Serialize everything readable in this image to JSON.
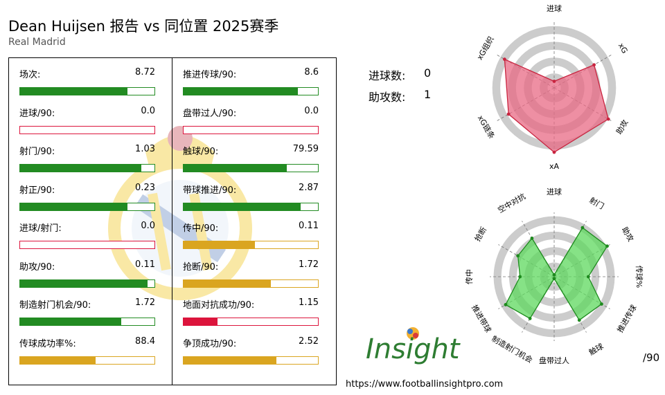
{
  "header": {
    "title": "Dean Huijsen 报告 vs 同位置 2025赛季",
    "subtitle": "Real Madrid"
  },
  "colors": {
    "green": "#228b22",
    "red": "#dc143c",
    "gold": "#daa520",
    "radar_red": "#e05070",
    "radar_green": "#4cc94c",
    "ring": "#cccccc"
  },
  "counts": {
    "goals_label": "进球数:",
    "goals_value": "0",
    "assists_label": "助攻数:",
    "assists_value": "1"
  },
  "stats_left": [
    {
      "label": "场次:",
      "value": "8.72",
      "fill": 0.8,
      "color": "green"
    },
    {
      "label": "进球/90:",
      "value": "0.0",
      "fill": 0.0,
      "color": "red"
    },
    {
      "label": "射门/90:",
      "value": "1.03",
      "fill": 0.9,
      "color": "green"
    },
    {
      "label": "射正/90:",
      "value": "0.23",
      "fill": 0.8,
      "color": "green"
    },
    {
      "label": "进球/射门:",
      "value": "0.0",
      "fill": 0.0,
      "color": "red"
    },
    {
      "label": "助攻/90:",
      "value": "0.11",
      "fill": 0.95,
      "color": "green"
    },
    {
      "label": "制造射门机会/90:",
      "value": "1.72",
      "fill": 0.75,
      "color": "green"
    },
    {
      "label": "传球成功率%:",
      "value": "88.4",
      "fill": 0.56,
      "color": "gold"
    }
  ],
  "stats_right": [
    {
      "label": "推进传球/90:",
      "value": "8.6",
      "fill": 0.85,
      "color": "green"
    },
    {
      "label": "盘带过人/90:",
      "value": "0.0",
      "fill": 0.0,
      "color": "red"
    },
    {
      "label": "触球/90:",
      "value": "79.59",
      "fill": 0.77,
      "color": "green"
    },
    {
      "label": "带球推进/90:",
      "value": "2.87",
      "fill": 0.87,
      "color": "green"
    },
    {
      "label": "传中/90:",
      "value": "0.11",
      "fill": 0.53,
      "color": "gold"
    },
    {
      "label": "抢断/90:",
      "value": "1.72",
      "fill": 0.65,
      "color": "gold"
    },
    {
      "label": "地面对抗成功/90:",
      "value": "1.15",
      "fill": 0.25,
      "color": "red"
    },
    {
      "label": "争顶成功/90:",
      "value": "2.52",
      "fill": 0.69,
      "color": "gold"
    }
  ],
  "chart_data": [
    {
      "type": "radar",
      "axes": [
        "进球",
        "xG",
        "助攻",
        "xA",
        "xG链条",
        "xG组织"
      ],
      "values": [
        0.1,
        0.7,
        0.95,
        0.98,
        0.8,
        0.87
      ],
      "max": 1.0
    },
    {
      "type": "radar",
      "axes": [
        "进球",
        "射门",
        "助攻",
        "传球%",
        "推进传球",
        "触球",
        "盘带过人",
        "制造射门机会",
        "推进带球",
        "传中",
        "抢断",
        "空中对抗"
      ],
      "values": [
        0.03,
        0.88,
        0.95,
        0.53,
        0.85,
        0.78,
        0.0,
        0.75,
        0.87,
        0.53,
        0.65,
        0.69
      ],
      "max": 1.0
    }
  ],
  "footer": {
    "logo_text": "Insight",
    "url": "https://www.footballinsightpro.com",
    "per90": "/90"
  }
}
